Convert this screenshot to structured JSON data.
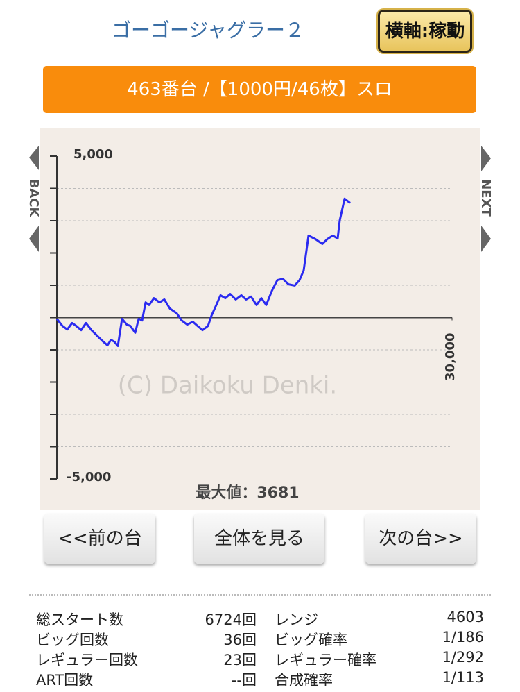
{
  "header": {
    "title": "ゴーゴージャグラー２",
    "axis_button": "横軸:稼動",
    "banner": "463番台 /【1000円/46枚】スロ"
  },
  "nav": {
    "back": "BACK",
    "next": "NEXT"
  },
  "chart_data": {
    "type": "line",
    "color": "#2b2bf0",
    "x": [
      0,
      421,
      789,
      1158,
      1474,
      1842,
      2211,
      2632,
      3053,
      3474,
      3842,
      4105,
      4368,
      4632,
      4947,
      5316,
      5579,
      5947,
      6211,
      6474,
      6737,
      7000,
      7368,
      7789,
      8158,
      8579,
      9105,
      9474,
      9895,
      10316,
      10684,
      11053,
      11474,
      11737,
      12105,
      12421,
      12789,
      13158,
      13579,
      14000,
      14368,
      14737,
      15158,
      15526,
      15895,
      16316,
      16737,
      17158,
      17579,
      18053,
      18421,
      18737,
      19105,
      19632,
      20158,
      20526,
      20947,
      21316,
      21474,
      21842,
      22263
    ],
    "values": [
      -40,
      -260,
      -370,
      -170,
      -260,
      -390,
      -170,
      -390,
      -560,
      -730,
      -860,
      -690,
      -750,
      -880,
      -40,
      -220,
      -260,
      -470,
      -40,
      -90,
      470,
      390,
      600,
      470,
      560,
      280,
      130,
      -90,
      -220,
      -130,
      -260,
      -390,
      -260,
      60,
      390,
      690,
      600,
      730,
      560,
      690,
      560,
      650,
      390,
      600,
      390,
      820,
      1160,
      1200,
      1030,
      990,
      1160,
      1460,
      2540,
      2430,
      2280,
      2430,
      2540,
      2450,
      3010,
      3681,
      3550
    ],
    "xlim": [
      0,
      30000
    ],
    "xticks": [
      {
        "value": 30000,
        "label": "30,000"
      }
    ],
    "ylim": [
      -5000,
      5000
    ],
    "yticks": [
      {
        "value": -5000,
        "label": "-5,000"
      },
      {
        "value": 5000,
        "label": "5,000"
      }
    ],
    "minor_yticks": [
      -4000,
      -3000,
      -2000,
      -1000,
      0,
      1000,
      2000,
      3000,
      4000
    ],
    "grid": true,
    "watermark": "(C) Daikoku Denki.",
    "annotation": "最大値：3681"
  },
  "buttons": {
    "prev": "<<前の台",
    "all": "全体を見る",
    "next": "次の台>>"
  },
  "table": {
    "rows": [
      [
        "総スタート数",
        "6724回",
        "レンジ",
        "4603"
      ],
      [
        "ビッグ回数",
        "36回",
        "ビッグ確率",
        "1/186"
      ],
      [
        "レギュラー回数",
        "23回",
        "レギュラー確率",
        "1/292"
      ],
      [
        "ART回数",
        "--回",
        "合成確率",
        "1/113"
      ]
    ]
  }
}
